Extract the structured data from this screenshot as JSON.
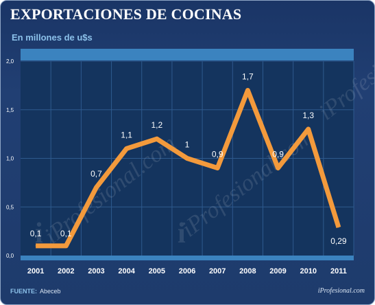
{
  "header": {
    "title": "EXPORTACIONES DE COCINAS",
    "subtitle": "En millones de u$s"
  },
  "footer": {
    "source_label": "FUENTE:",
    "source_value": "Abeceb",
    "credit": "iProfesional.com"
  },
  "watermark": {
    "text": "iProfesional.com",
    "icon": "iprofesional-logo-icon"
  },
  "colors": {
    "line": "#f39a3c",
    "plot_bg": "#14345e",
    "grid": "#2e5a8e",
    "band": "#3b83bf",
    "text": "#ffffff"
  },
  "chart_data": {
    "type": "line",
    "title": "EXPORTACIONES DE COCINAS",
    "subtitle": "En millones de u$s",
    "xlabel": "",
    "ylabel": "",
    "categories": [
      "2001",
      "2002",
      "2003",
      "2004",
      "2005",
      "2006",
      "2007",
      "2008",
      "2009",
      "2010",
      "2011"
    ],
    "series": [
      {
        "values": [
          0.1,
          0.1,
          0.7,
          1.1,
          1.2,
          1.0,
          0.9,
          1.7,
          0.9,
          1.3,
          0.29
        ],
        "labels": [
          "0,1",
          "0,1",
          "0,7",
          "1,1",
          "1,2",
          "1",
          "0,9",
          "1,7",
          "0,9",
          "1,3",
          "0,29"
        ]
      }
    ],
    "ylim": [
      0,
      2
    ],
    "yticks": [
      0,
      0.5,
      1,
      1.5,
      2
    ],
    "ytick_labels": [
      "0,0",
      "0,5",
      "1,0",
      "1,5",
      "2,0"
    ],
    "grid": true,
    "legend": "none"
  }
}
